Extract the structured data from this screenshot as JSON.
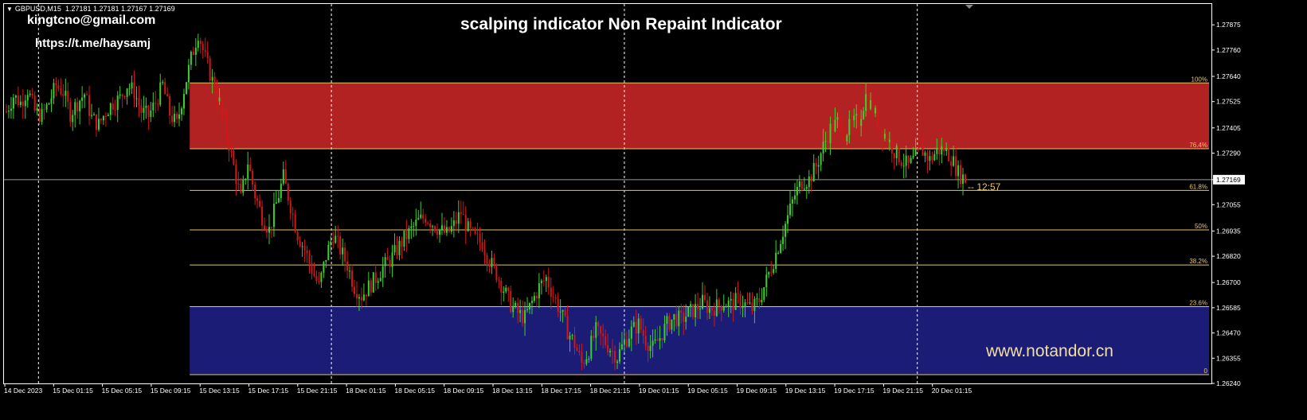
{
  "header": {
    "symbol": "GBPUSD,M15",
    "ohlc": "1.27181 1.27181 1.27167 1.27169"
  },
  "overlay": {
    "email": "kingtcno@gmail.com",
    "telegram": "https://t.me/haysamj",
    "title": "scalping indicator Non Repaint Indicator",
    "watermark": "www.notandor.cn",
    "timer": "-- 12:57"
  },
  "colors": {
    "background": "#000000",
    "bull_candle": "#3ecf2e",
    "bear_candle": "#d01818",
    "sell_zone": "#b32222",
    "buy_zone": "#1b1c75",
    "fib_line": "#e8c46a",
    "grid": "#ffffff",
    "axis": "#ffffff"
  },
  "chart_data": {
    "type": "candlestick",
    "ylim": [
      1.2624,
      1.2797
    ],
    "y_ticks": [
      "1.27875",
      "1.27760",
      "1.27640",
      "1.27525",
      "1.27405",
      "1.27290",
      "1.27169",
      "1.27055",
      "1.26935",
      "1.26820",
      "1.26700",
      "1.26585",
      "1.26470",
      "1.26355",
      "1.26240"
    ],
    "current_price": "1.27169",
    "x_tick_labels": [
      "14 Dec 2023",
      "15 Dec 01:15",
      "15 Dec 05:15",
      "15 Dec 09:15",
      "15 Dec 13:15",
      "15 Dec 17:15",
      "15 Dec 21:15",
      "18 Dec 01:15",
      "18 Dec 05:15",
      "18 Dec 09:15",
      "18 Dec 13:15",
      "18 Dec 17:15",
      "18 Dec 21:15",
      "19 Dec 01:15",
      "19 Dec 05:15",
      "19 Dec 09:15",
      "19 Dec 13:15",
      "19 Dec 17:15",
      "19 Dec 21:15",
      "20 Dec 01:15"
    ],
    "day_separators": [
      "15 Dec",
      "18 Dec",
      "19 Dec",
      "20 Dec"
    ],
    "fibonacci": {
      "start_label": "15 Dec 13:15",
      "levels": [
        {
          "label": "100%",
          "price": 1.2761
        },
        {
          "label": "76.4%",
          "price": 1.2731
        },
        {
          "label": "61.8%",
          "price": 1.2712
        },
        {
          "label": "50%",
          "price": 1.2694
        },
        {
          "label": "38.2%",
          "price": 1.2678
        },
        {
          "label": "23.6%",
          "price": 1.2659
        },
        {
          "label": "0",
          "price": 1.2628
        }
      ]
    },
    "zones": [
      {
        "name": "sell-zone",
        "from": 1.2731,
        "to": 1.2761
      },
      {
        "name": "buy-zone",
        "from": 1.2628,
        "to": 1.2659
      }
    ],
    "close_path": [
      1.2748,
      1.2755,
      1.2752,
      1.2758,
      1.2748,
      1.2746,
      1.2752,
      1.276,
      1.2757,
      1.2747,
      1.2752,
      1.2756,
      1.2745,
      1.2742,
      1.2748,
      1.2752,
      1.2754,
      1.276,
      1.2757,
      1.2748,
      1.2746,
      1.2752,
      1.276,
      1.2747,
      1.2742,
      1.2758,
      1.2772,
      1.2784,
      1.2772,
      1.2762,
      1.2752,
      1.2738,
      1.2723,
      1.2708,
      1.2725,
      1.271,
      1.27,
      1.2694,
      1.2706,
      1.2718,
      1.2705,
      1.2692,
      1.2685,
      1.2676,
      1.2668,
      1.2682,
      1.2692,
      1.2685,
      1.2678,
      1.2668,
      1.2664,
      1.2668,
      1.2672,
      1.2677,
      1.268,
      1.2685,
      1.269,
      1.2694,
      1.2698,
      1.27,
      1.2697,
      1.2694,
      1.2692,
      1.2696,
      1.2702,
      1.2694,
      1.269,
      1.2688,
      1.268,
      1.2674,
      1.2667,
      1.266,
      1.2656,
      1.2654,
      1.2661,
      1.2668,
      1.2672,
      1.2664,
      1.2657,
      1.2648,
      1.2642,
      1.2633,
      1.2639,
      1.2648,
      1.2644,
      1.264,
      1.2636,
      1.2643,
      1.2648,
      1.2651,
      1.2644,
      1.264,
      1.2645,
      1.2651,
      1.2654,
      1.2653,
      1.2656,
      1.2658,
      1.2661,
      1.2658,
      1.2659,
      1.2661,
      1.266,
      1.2662,
      1.266,
      1.2658,
      1.2662,
      1.2671,
      1.268,
      1.269,
      1.27,
      1.271,
      1.2716,
      1.2717,
      1.2723,
      1.2732,
      1.274,
      1.2743,
      1.2738,
      1.2742,
      1.2744,
      1.2755,
      1.2749,
      1.2741,
      1.2736,
      1.273,
      1.2726,
      1.2723,
      1.2727,
      1.273,
      1.2726,
      1.273,
      1.2731,
      1.2727,
      1.272,
      1.2717
    ]
  }
}
